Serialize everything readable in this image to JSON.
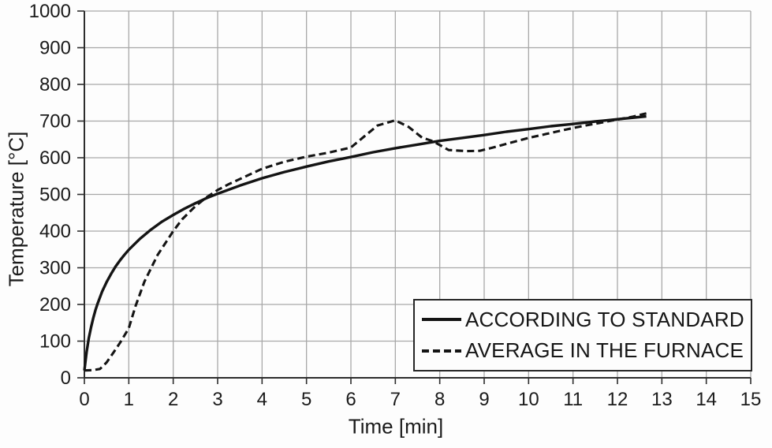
{
  "chart_data": {
    "type": "line",
    "xlabel": "Time [min]",
    "ylabel": "Temperature [°C]",
    "xlim": [
      0,
      15
    ],
    "ylim": [
      0,
      1000
    ],
    "x_ticks": [
      0,
      1,
      2,
      3,
      4,
      5,
      6,
      7,
      8,
      9,
      10,
      11,
      12,
      13,
      14,
      15
    ],
    "y_ticks": [
      0,
      100,
      200,
      300,
      400,
      500,
      600,
      700,
      800,
      900,
      1000
    ],
    "grid": "on",
    "grid_color": "#a8a8a8",
    "line_color": "#141414",
    "legend": {
      "position": "inside-bottom-right"
    },
    "series": [
      {
        "name": "ACCORDING TO STANDARD",
        "style": "solid",
        "color": "#141414",
        "points": [
          [
            0,
            20
          ],
          [
            0.05,
            70
          ],
          [
            0.1,
            108
          ],
          [
            0.15,
            138
          ],
          [
            0.2,
            163
          ],
          [
            0.25,
            185
          ],
          [
            0.3,
            203
          ],
          [
            0.4,
            235
          ],
          [
            0.5,
            261
          ],
          [
            0.6,
            283
          ],
          [
            0.7,
            303
          ],
          [
            0.8,
            320
          ],
          [
            0.9,
            335
          ],
          [
            1,
            349
          ],
          [
            1.25,
            379
          ],
          [
            1.5,
            404
          ],
          [
            1.75,
            426
          ],
          [
            2,
            444
          ],
          [
            2.25,
            461
          ],
          [
            2.5,
            476
          ],
          [
            2.75,
            490
          ],
          [
            3,
            502
          ],
          [
            3.5,
            524
          ],
          [
            4,
            544
          ],
          [
            4.5,
            561
          ],
          [
            5,
            576
          ],
          [
            5.5,
            590
          ],
          [
            6,
            602
          ],
          [
            6.5,
            615
          ],
          [
            7,
            626
          ],
          [
            7.5,
            636
          ],
          [
            8,
            646
          ],
          [
            8.5,
            654
          ],
          [
            9,
            662
          ],
          [
            9.5,
            671
          ],
          [
            10,
            678
          ],
          [
            10.5,
            686
          ],
          [
            11,
            692
          ],
          [
            11.5,
            699
          ],
          [
            12,
            705
          ],
          [
            12.65,
            713
          ]
        ]
      },
      {
        "name": "AVERAGE IN THE FURNACE",
        "style": "dashed",
        "color": "#141414",
        "points": [
          [
            0,
            20
          ],
          [
            0.2,
            21
          ],
          [
            0.35,
            24
          ],
          [
            0.5,
            42
          ],
          [
            0.65,
            68
          ],
          [
            0.8,
            95
          ],
          [
            1,
            135
          ],
          [
            1.15,
            195
          ],
          [
            1.35,
            262
          ],
          [
            1.65,
            335
          ],
          [
            2,
            400
          ],
          [
            2.2,
            432
          ],
          [
            2.5,
            468
          ],
          [
            2.75,
            492
          ],
          [
            3,
            512
          ],
          [
            3.25,
            528
          ],
          [
            3.5,
            542
          ],
          [
            4,
            570
          ],
          [
            4.5,
            589
          ],
          [
            5,
            603
          ],
          [
            5.5,
            614
          ],
          [
            6,
            628
          ],
          [
            6.3,
            658
          ],
          [
            6.6,
            688
          ],
          [
            7,
            702
          ],
          [
            7.3,
            684
          ],
          [
            7.6,
            655
          ],
          [
            7.85,
            645
          ],
          [
            8.2,
            621
          ],
          [
            8.6,
            618
          ],
          [
            8.9,
            619
          ],
          [
            9.2,
            628
          ],
          [
            9.6,
            641
          ],
          [
            10,
            654
          ],
          [
            10.4,
            665
          ],
          [
            10.8,
            676
          ],
          [
            11.2,
            686
          ],
          [
            11.6,
            695
          ],
          [
            12,
            704
          ],
          [
            12.35,
            712
          ],
          [
            12.65,
            721
          ]
        ]
      }
    ]
  }
}
